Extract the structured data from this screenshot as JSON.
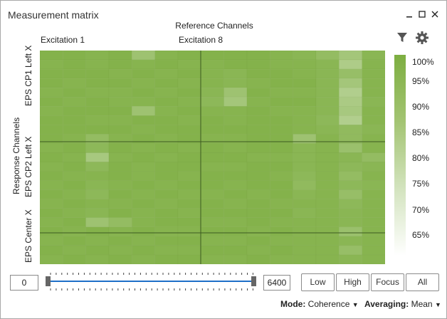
{
  "window": {
    "title": "Measurement matrix",
    "controls": [
      "minimize-icon",
      "maximize-icon",
      "close-icon"
    ]
  },
  "toolbar": {
    "filter_icon": "filter-icon",
    "settings_icon": "gear-icon"
  },
  "matrix": {
    "reference_title": "Reference Channels",
    "reference_groups": [
      "Excitation 1",
      "Excitation 8"
    ],
    "response_title": "Response Channels",
    "response_groups": [
      "EPS CP1 Left X",
      "EPS CP2 Left X",
      "EPS Center X"
    ]
  },
  "chart_data": {
    "type": "heatmap",
    "xlabel": "Reference Channels",
    "ylabel": "Response Channels",
    "colorbar_ticks": [
      "100%",
      "95%",
      "90%",
      "85%",
      "80%",
      "75%",
      "70%",
      "65%"
    ],
    "colors": {
      "high": "#7dae41",
      "low": "#ffffff"
    },
    "values": [
      [
        98,
        98,
        97,
        98,
        90,
        97,
        98,
        98,
        98,
        98,
        97,
        96,
        93,
        88,
        96
      ],
      [
        97,
        98,
        97,
        98,
        97,
        98,
        97,
        97,
        98,
        98,
        97,
        97,
        96,
        85,
        97
      ],
      [
        98,
        98,
        98,
        97,
        98,
        97,
        98,
        97,
        96,
        98,
        98,
        97,
        96,
        92,
        97
      ],
      [
        98,
        97,
        98,
        98,
        97,
        98,
        97,
        97,
        96,
        97,
        98,
        98,
        96,
        88,
        97
      ],
      [
        97,
        98,
        97,
        97,
        98,
        97,
        98,
        96,
        90,
        98,
        97,
        97,
        96,
        84,
        97
      ],
      [
        98,
        97,
        98,
        97,
        97,
        98,
        97,
        95,
        88,
        97,
        98,
        98,
        96,
        86,
        96
      ],
      [
        97,
        98,
        98,
        98,
        90,
        97,
        98,
        97,
        97,
        98,
        97,
        97,
        96,
        87,
        97
      ],
      [
        98,
        98,
        97,
        97,
        98,
        98,
        97,
        98,
        97,
        98,
        98,
        97,
        95,
        84,
        97
      ],
      [
        98,
        98,
        98,
        98,
        97,
        98,
        98,
        98,
        98,
        98,
        98,
        97,
        96,
        94,
        96
      ],
      [
        98,
        97,
        93,
        97,
        98,
        97,
        98,
        97,
        97,
        98,
        98,
        90,
        97,
        94,
        97
      ],
      [
        97,
        98,
        95,
        98,
        97,
        98,
        97,
        98,
        97,
        98,
        98,
        96,
        97,
        91,
        97
      ],
      [
        98,
        97,
        87,
        97,
        98,
        97,
        98,
        98,
        98,
        97,
        97,
        96,
        97,
        96,
        93
      ],
      [
        97,
        98,
        95,
        98,
        97,
        98,
        98,
        97,
        97,
        98,
        98,
        96,
        97,
        95,
        96
      ],
      [
        98,
        97,
        97,
        98,
        97,
        98,
        97,
        98,
        98,
        98,
        97,
        95,
        97,
        93,
        97
      ],
      [
        97,
        98,
        96,
        97,
        98,
        97,
        98,
        98,
        97,
        98,
        98,
        94,
        97,
        95,
        96
      ],
      [
        98,
        97,
        95,
        98,
        97,
        98,
        97,
        97,
        98,
        97,
        98,
        96,
        97,
        92,
        97
      ],
      [
        97,
        98,
        97,
        97,
        98,
        97,
        98,
        98,
        97,
        98,
        97,
        97,
        97,
        95,
        97
      ],
      [
        98,
        97,
        96,
        98,
        97,
        98,
        97,
        98,
        98,
        98,
        98,
        96,
        97,
        96,
        97
      ],
      [
        97,
        98,
        90,
        93,
        97,
        98,
        98,
        97,
        97,
        98,
        97,
        97,
        97,
        96,
        97
      ],
      [
        98,
        97,
        98,
        97,
        98,
        97,
        97,
        98,
        98,
        97,
        98,
        97,
        97,
        91,
        97
      ],
      [
        97,
        98,
        97,
        98,
        97,
        98,
        98,
        97,
        97,
        98,
        97,
        97,
        97,
        96,
        97
      ],
      [
        98,
        97,
        98,
        97,
        98,
        97,
        97,
        98,
        98,
        97,
        98,
        97,
        97,
        92,
        97
      ],
      [
        97,
        98,
        97,
        98,
        97,
        98,
        98,
        97,
        97,
        98,
        97,
        97,
        97,
        96,
        97
      ]
    ]
  },
  "range": {
    "min_value": "0",
    "max_value": "6400",
    "low_label": "Low",
    "high_label": "High",
    "focus_label": "Focus",
    "all_label": "All"
  },
  "footer": {
    "mode_label": "Mode:",
    "mode_value": "Coherence",
    "averaging_label": "Averaging:",
    "averaging_value": "Mean"
  }
}
